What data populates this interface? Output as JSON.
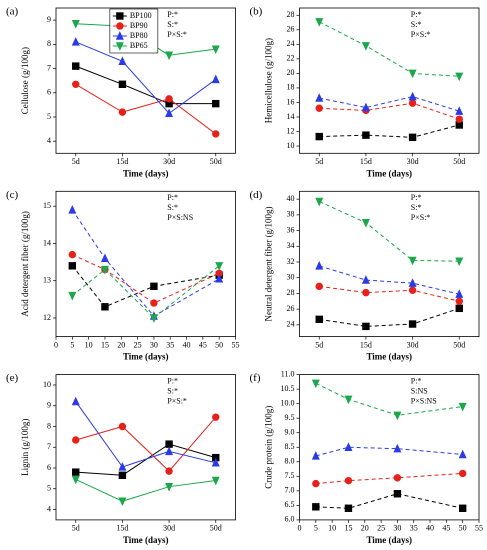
{
  "chart_data": [
    {
      "type": "line",
      "panel_label": "(a)",
      "y_label": "Cellulose (g/100g)",
      "x_label": "Time (days)",
      "categories": [
        "5d",
        "15d",
        "30d",
        "50d"
      ],
      "ylim": [
        3.5,
        9.5
      ],
      "yticks": [
        4,
        5,
        6,
        7,
        8,
        9
      ],
      "annotations": [
        "P:*",
        "S:*",
        "P×S:*"
      ],
      "line_style": "solid",
      "legend": "top-right",
      "series": [
        {
          "name": "BP100",
          "color": "#000000",
          "marker": "square",
          "values": [
            7.1,
            6.35,
            5.55,
            5.55
          ]
        },
        {
          "name": "BP90",
          "color": "#e8201a",
          "marker": "circle",
          "values": [
            6.35,
            5.2,
            5.75,
            4.3
          ]
        },
        {
          "name": "BP80",
          "color": "#2a3ae8",
          "marker": "triangle-up",
          "values": [
            8.1,
            7.3,
            5.15,
            6.55
          ]
        },
        {
          "name": "BP65",
          "color": "#1aa84a",
          "marker": "triangle-down",
          "values": [
            8.85,
            8.75,
            7.55,
            7.8
          ]
        }
      ]
    },
    {
      "type": "line",
      "panel_label": "(b)",
      "y_label": "Hemicellulose (g/100g)",
      "x_label": "Time (days)",
      "categories": [
        "5d",
        "15d",
        "30d",
        "50d"
      ],
      "ylim": [
        9,
        29
      ],
      "yticks": [
        10,
        12,
        14,
        16,
        18,
        20,
        22,
        24,
        26,
        28
      ],
      "annotations": [
        "P:*",
        "S:*",
        "P×S:*"
      ],
      "line_style": "dashed",
      "series": [
        {
          "color": "#000000",
          "marker": "square",
          "values": [
            11.3,
            11.5,
            11.2,
            12.9
          ]
        },
        {
          "color": "#e8201a",
          "marker": "circle",
          "values": [
            15.2,
            14.9,
            15.9,
            13.7
          ]
        },
        {
          "color": "#2a3ae8",
          "marker": "triangle-up",
          "values": [
            16.6,
            15.3,
            16.8,
            14.8
          ]
        },
        {
          "color": "#1aa84a",
          "marker": "triangle-down",
          "values": [
            27.1,
            23.8,
            20.0,
            19.6
          ]
        }
      ]
    },
    {
      "type": "line",
      "panel_label": "(c)",
      "y_label": "Acid detergent fiber (g/100g)",
      "x_label": "Time (days)",
      "x": [
        5,
        15,
        30,
        50
      ],
      "xlim": [
        0,
        55
      ],
      "xticks": [
        0,
        5,
        10,
        15,
        20,
        25,
        30,
        35,
        40,
        45,
        50,
        55
      ],
      "ylim": [
        11.5,
        15.4
      ],
      "yticks": [
        12,
        13,
        14,
        15
      ],
      "annotations": [
        "P:*",
        "S:*",
        "P×S:NS"
      ],
      "line_style": "dashed",
      "series": [
        {
          "color": "#000000",
          "marker": "square",
          "values": [
            13.4,
            12.3,
            12.85,
            13.15
          ]
        },
        {
          "color": "#e8201a",
          "marker": "circle",
          "values": [
            13.7,
            13.3,
            12.4,
            13.2
          ]
        },
        {
          "color": "#2a3ae8",
          "marker": "triangle-up",
          "values": [
            14.9,
            13.6,
            12.05,
            13.05
          ]
        },
        {
          "color": "#1aa84a",
          "marker": "triangle-down",
          "values": [
            12.6,
            13.3,
            12.0,
            13.4
          ]
        }
      ]
    },
    {
      "type": "line",
      "panel_label": "(d)",
      "y_label": "Neutral detergent fiber (g/100g)",
      "x_label": "Time (days)",
      "categories": [
        "5d",
        "15d",
        "30d",
        "50d"
      ],
      "ylim": [
        22.5,
        41
      ],
      "yticks": [
        24,
        26,
        28,
        30,
        32,
        34,
        36,
        38,
        40
      ],
      "annotations": [
        "P:*",
        "S:*",
        "P×S:*"
      ],
      "line_style": "dashed",
      "series": [
        {
          "color": "#000000",
          "marker": "square",
          "values": [
            24.7,
            23.8,
            24.1,
            26.1
          ]
        },
        {
          "color": "#e8201a",
          "marker": "circle",
          "values": [
            28.9,
            28.1,
            28.4,
            27.0
          ]
        },
        {
          "color": "#2a3ae8",
          "marker": "triangle-up",
          "values": [
            31.5,
            29.7,
            29.3,
            27.9
          ]
        },
        {
          "color": "#1aa84a",
          "marker": "triangle-down",
          "values": [
            39.7,
            37.0,
            32.2,
            32.1
          ]
        }
      ]
    },
    {
      "type": "line",
      "panel_label": "(e)",
      "y_label": "Lignin (g/100g)",
      "x_label": "Time (days)",
      "categories": [
        "5d",
        "15d",
        "30d",
        "50d"
      ],
      "ylim": [
        3.5,
        10.5
      ],
      "yticks": [
        4,
        5,
        6,
        7,
        8,
        9,
        10
      ],
      "annotations": [
        "P:*",
        "S:*",
        "P×S:*"
      ],
      "line_style": "solid",
      "series": [
        {
          "color": "#000000",
          "marker": "square",
          "values": [
            5.8,
            5.65,
            7.15,
            6.5
          ]
        },
        {
          "color": "#e8201a",
          "marker": "circle",
          "values": [
            7.35,
            8.0,
            5.85,
            8.45
          ]
        },
        {
          "color": "#2a3ae8",
          "marker": "triangle-up",
          "values": [
            9.2,
            6.05,
            6.8,
            6.25
          ]
        },
        {
          "color": "#1aa84a",
          "marker": "triangle-down",
          "values": [
            5.45,
            4.4,
            5.1,
            5.4
          ]
        }
      ]
    },
    {
      "type": "line",
      "panel_label": "(f)",
      "y_label": "Crude protein (g/100g)",
      "x_label": "Time (days)",
      "x": [
        5,
        15,
        30,
        50
      ],
      "xlim": [
        0,
        55
      ],
      "xticks": [
        0,
        5,
        10,
        15,
        20,
        25,
        30,
        35,
        40,
        45,
        50,
        55
      ],
      "ylim": [
        6.0,
        11.0
      ],
      "yticks": [
        {
          "value": 6,
          "label": "6.0"
        },
        6.5,
        {
          "value": 7,
          "label": "7.0"
        },
        7.5,
        {
          "value": 8,
          "label": "8.0"
        },
        8.5,
        {
          "value": 9,
          "label": "9.0"
        },
        9.5,
        {
          "value": 10,
          "label": "10.0"
        },
        10.5,
        {
          "value": 11,
          "label": "11.0"
        }
      ],
      "annotations": [
        "P:*",
        "S:NS",
        "P×S:NS"
      ],
      "line_style": "dashed",
      "series": [
        {
          "color": "#000000",
          "marker": "square",
          "values": [
            6.45,
            6.4,
            6.9,
            6.4
          ]
        },
        {
          "color": "#e8201a",
          "marker": "circle",
          "values": [
            7.25,
            7.35,
            7.45,
            7.6
          ]
        },
        {
          "color": "#2a3ae8",
          "marker": "triangle-up",
          "values": [
            8.2,
            8.5,
            8.45,
            8.25
          ]
        },
        {
          "color": "#1aa84a",
          "marker": "triangle-down",
          "values": [
            10.7,
            10.15,
            9.6,
            9.9
          ]
        }
      ]
    }
  ]
}
